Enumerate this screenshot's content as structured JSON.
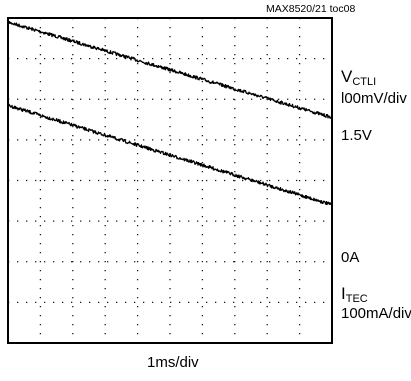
{
  "figure_id": "MAX8520/21 toc08",
  "channels": [
    {
      "name_main": "V",
      "name_sub": "CTLI",
      "scale": "l00mV/div",
      "level_marker": "1.5V"
    },
    {
      "name_main": "I",
      "name_sub": "TEC",
      "scale": "100mA/div",
      "level_marker": "0A"
    }
  ],
  "timebase": "1ms/div",
  "colors": {
    "trace": "#000000",
    "grid": "#000000",
    "background": "#ffffff"
  },
  "chart_data": {
    "type": "line",
    "grid": {
      "x_divisions": 10,
      "y_divisions": 8,
      "style": "dotted"
    },
    "x_unit": "ms",
    "xlim": [
      0,
      10
    ],
    "series": [
      {
        "name": "VCTLI",
        "x": [
          0,
          10
        ],
        "y_div": [
          3.9,
          1.55
        ]
      },
      {
        "name": "ITEC",
        "x": [
          0,
          10
        ],
        "y_div": [
          1.85,
          -0.6
        ]
      }
    ]
  }
}
